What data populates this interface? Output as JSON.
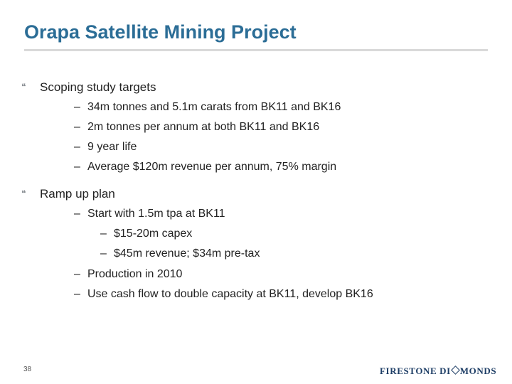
{
  "slide": {
    "title": "Orapa Satellite Mining Project",
    "bullet_marker": "❝",
    "dash": "–",
    "bullets": [
      {
        "text": "Scoping study targets",
        "subitems": [
          "34m tonnes and 5.1m carats from BK11 and BK16",
          "2m tonnes per annum at both BK11 and BK16",
          "9 year life",
          "Average $120m revenue per annum, 75% margin"
        ]
      },
      {
        "text": "Ramp up plan",
        "subitems": [
          "Start with 1.5m tpa at BK11",
          "$15-20m capex",
          "$45m revenue; $34m pre-tax",
          "Production in 2010",
          "Use cash flow to double capacity at BK11, develop BK16"
        ]
      }
    ],
    "page_number": "38",
    "logo": {
      "part1": "FIRESTONE DI",
      "part2": "MONDS",
      "color": "#1e3e66"
    },
    "title_color": "#2b6d96"
  }
}
